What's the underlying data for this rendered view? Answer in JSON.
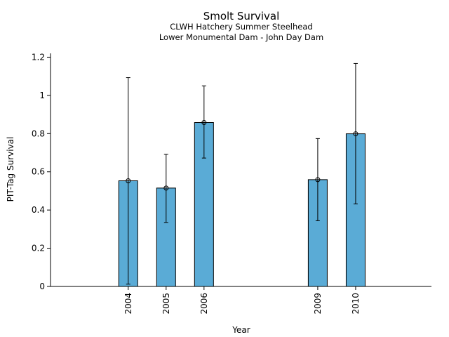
{
  "chart_data": {
    "type": "bar",
    "title": "Smolt Survival",
    "subtitle_lines": [
      "CLWH Hatchery Summer Steelhead",
      "Lower Monumental Dam - John Day Dam"
    ],
    "xlabel": "Year",
    "ylabel": "PIT-Tag Survival",
    "x_range": [
      2001.95,
      2012.0
    ],
    "ylim": [
      0,
      1.22
    ],
    "y_ticks": [
      0,
      0.2,
      0.4,
      0.6,
      0.8,
      1,
      1.2
    ],
    "y_tick_labels": [
      "0",
      "0.2",
      "0.4",
      "0.6",
      "0.8",
      "1",
      "1.2"
    ],
    "x": [
      2004,
      2005,
      2006,
      2009,
      2010
    ],
    "x_tick_labels": [
      "2004",
      "2005",
      "2006",
      "2009",
      "2010"
    ],
    "values": [
      0.553,
      0.515,
      0.858,
      0.559,
      0.799
    ],
    "error_low": [
      0.012,
      0.335,
      0.672,
      0.344,
      0.432
    ],
    "error_high": [
      1.093,
      0.692,
      1.05,
      0.774,
      1.167
    ],
    "bar_color": "#5aabd6",
    "edge_color": "#000000",
    "grid": false,
    "legend": "none"
  }
}
